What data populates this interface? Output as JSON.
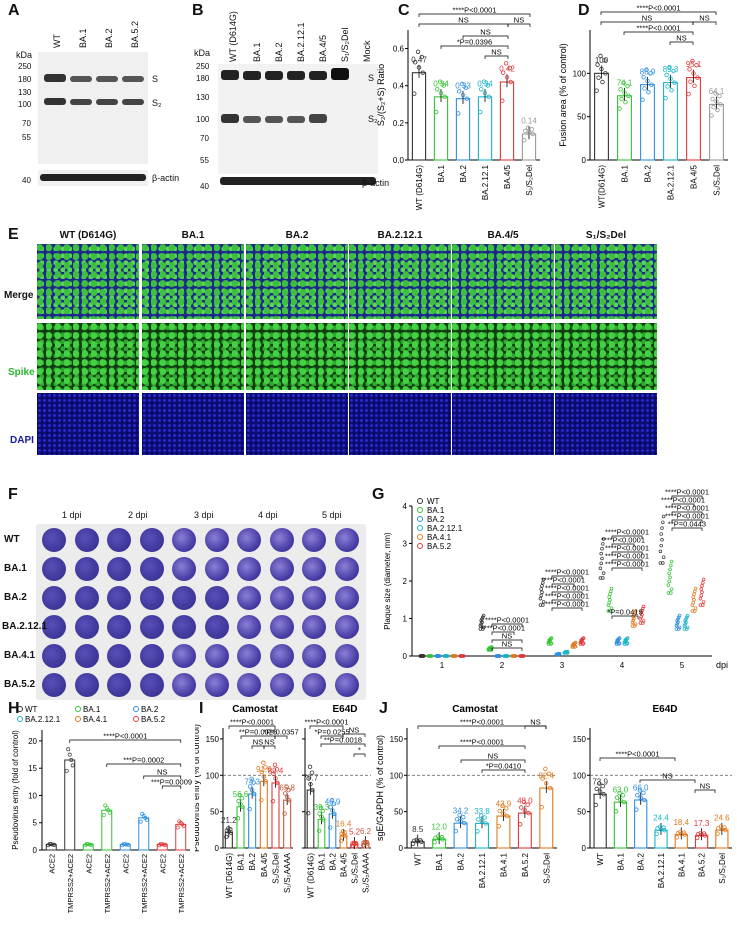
{
  "panelLabels": [
    "A",
    "B",
    "C",
    "D",
    "E",
    "F",
    "G",
    "H",
    "I",
    "J"
  ],
  "A": {
    "lanes": [
      "WT",
      "BA.1",
      "BA.2",
      "BA.5.2"
    ],
    "kda": "kDa",
    "markers": [
      "250",
      "180",
      "130",
      "100",
      "70",
      "55",
      "40"
    ],
    "bands": [
      "S",
      "S₂",
      "β-actin"
    ]
  },
  "B": {
    "lanes": [
      "WT (D614G)",
      "BA.1",
      "BA.2",
      "BA.2.12.1",
      "BA.4/5",
      "S₁/S₂Del",
      "Mock"
    ],
    "kda": "kDa",
    "markers": [
      "250",
      "180",
      "130",
      "100",
      "70",
      "55",
      "40"
    ],
    "bands": [
      "S",
      "S₂",
      "β-actin"
    ]
  },
  "C": {
    "ylabel": "S₂/(S₂+S) Ratio",
    "categories": [
      "WT (D614G)",
      "BA.1",
      "BA.2",
      "BA.2.12.1",
      "BA.4/5",
      "S₁/S₂Del"
    ],
    "valueLabels": [
      "0.47",
      "0.34",
      "0.33",
      "0.34",
      "0.42",
      "0.14"
    ],
    "ticks": [
      "0.0",
      "0.2",
      "0.4",
      "0.6"
    ],
    "stats": [
      "****P<0.0001",
      "NS",
      "NS",
      "*P=0.0396",
      "NS",
      "NS"
    ]
  },
  "D": {
    "ylabel": "Fusion area (% of control)",
    "categories": [
      "WT(D614G)",
      "BA.1",
      "BA.2",
      "BA.2.12.1",
      "BA.4/5",
      "S₁/S₂Del"
    ],
    "valueLabels": [
      "100",
      "74.1",
      "86.9",
      "89.3",
      "95.1",
      "64.1"
    ],
    "ticks": [
      "0",
      "50",
      "100"
    ],
    "stats": [
      "****P<0.0001",
      "NS",
      "****P<0.0001",
      "NS",
      "NS"
    ]
  },
  "E": {
    "columns": [
      "WT (D614G)",
      "BA.1",
      "BA.2",
      "BA.2.12.1",
      "BA.4/5",
      "S₁/S₂Del"
    ],
    "rows": [
      "Merge",
      "Spike",
      "DAPI"
    ]
  },
  "F": {
    "days": [
      "1 dpi",
      "2 dpi",
      "3 dpi",
      "4 dpi",
      "5 dpi"
    ],
    "rows": [
      "WT",
      "BA.1",
      "BA.2",
      "BA.2.12.1",
      "BA.4.1",
      "BA.5.2"
    ]
  },
  "G": {
    "legend": [
      "WT",
      "BA.1",
      "BA.2",
      "BA.2.12.1",
      "BA.4.1",
      "BA.5.2"
    ],
    "ylabel": "Plaque size (diameter, mm)",
    "xlabel": "dpi",
    "xticks": [
      "1",
      "2",
      "3",
      "4",
      "5"
    ],
    "yticks": [
      "0",
      "1",
      "2",
      "3",
      "4"
    ],
    "stats": [
      "****P<0.0001",
      "****P<0.0001",
      "****P<0.0001",
      "****P<0.0001",
      "**P=0.0443",
      "****P<0.0001",
      "****P<0.0001",
      "****P<0.0001",
      "****P<0.0001",
      "****P<0.0001",
      "****P<0.0001",
      "****P<0.0001",
      "****P<0.0001",
      "****P<0.0001",
      "****P<0.0001",
      "*P=0.0419",
      "****P<0.0001",
      "****P<0.0001",
      "NS",
      "NS",
      "***P=0.0009",
      "****P<0.0001",
      "NS",
      "NS",
      "NS"
    ]
  },
  "H": {
    "legend": [
      "WT",
      "BA.1",
      "BA.2",
      "BA.2.12.1",
      "BA.4.1",
      "BA.5.2"
    ],
    "ylabel": "Pseudovirus entry (fold of control)",
    "xticks": [
      "ACE2",
      "TMPRSS2+ACE2",
      "ACE2",
      "TMPRSS2+ACE2",
      "ACE2",
      "TMPRSS2+ACE2",
      "ACE2",
      "TMPRSS2+ACE2"
    ],
    "yticks": [
      "0",
      "5",
      "10",
      "15",
      "20"
    ],
    "stats": [
      "****P<0.0001",
      "***P=0.0002",
      "NS",
      "***P=0.0009"
    ]
  },
  "I": {
    "titles": [
      "Camostat",
      "E64D"
    ],
    "ylabel": "Pseudovirus entry (% of control)",
    "categories": [
      "WT (D614G)",
      "BA.1",
      "BA.2",
      "BA.4/5",
      "S₁/S₂Del",
      "S₁/S₂AAAA"
    ],
    "camostatLabels": [
      "21.2",
      "56.6",
      "74.3",
      "91.6",
      "89.4",
      "65.8"
    ],
    "e64dLabels": [
      "79.7",
      "39.3",
      "46.9",
      "16.4",
      "5.2",
      "6.2"
    ],
    "yticks": [
      "0",
      "50",
      "100",
      "150"
    ],
    "camostatStats": [
      "****P<0.0001",
      "**P=0.0025",
      "*P=0.0357",
      "NS",
      "NS"
    ],
    "e64dStats": [
      "****P<0.0001",
      "*P=0.0255",
      "**P=0.0018",
      "NS",
      "*"
    ]
  },
  "J": {
    "titles": [
      "Camostat",
      "E64D"
    ],
    "ylabel": "sgE/GAPDH (% of control)",
    "categories": [
      "WT",
      "BA.1",
      "BA.2",
      "BA.2.12.1",
      "BA.4.1",
      "BA.5.2",
      "S₁/S₂Del"
    ],
    "camostatLabels": [
      "8.5",
      "12.0",
      "34.2",
      "33.8",
      "43.9",
      "48.0",
      "82.4"
    ],
    "e64dCategories": [
      "WT",
      "BA.1",
      "BA.2",
      "BA.2.12.1",
      "BA.4.1",
      "BA.5.2",
      "S₁/S₂Del"
    ],
    "e64dLabels": [
      "73.9",
      "63.0",
      "66.0",
      "24.4",
      "18.4",
      "17.3",
      "24.6"
    ],
    "yticks": [
      "0",
      "50",
      "100",
      "150"
    ],
    "camostatStats": [
      "****P<0.0001",
      "****P<0.0001",
      "NS",
      "*P=0.0410",
      "NS"
    ],
    "e64dStats": [
      "****P<0.0001",
      "NS",
      "NS"
    ]
  },
  "chart_data": [
    {
      "type": "bar",
      "panel": "C",
      "categories": [
        "WT (D614G)",
        "BA.1",
        "BA.2",
        "BA.2.12.1",
        "BA.4/5",
        "S1/S2Del"
      ],
      "values": [
        0.47,
        0.34,
        0.33,
        0.34,
        0.42,
        0.14
      ],
      "ylim": [
        0,
        0.7
      ],
      "ylabel": "S2/(S2+S) Ratio"
    },
    {
      "type": "bar",
      "panel": "D",
      "categories": [
        "WT(D614G)",
        "BA.1",
        "BA.2",
        "BA.2.12.1",
        "BA.4/5",
        "S1/S2Del"
      ],
      "values": [
        100,
        74.1,
        86.9,
        89.3,
        95.1,
        64.1
      ],
      "ylim": [
        0,
        150
      ],
      "ylabel": "Fusion area (% of control)"
    },
    {
      "type": "scatter",
      "panel": "G",
      "x": [
        1,
        2,
        3,
        4,
        5
      ],
      "series": [
        {
          "name": "WT",
          "values": [
            0,
            0.9,
            1.7,
            2.6,
            3.1
          ]
        },
        {
          "name": "BA.1",
          "values": [
            0,
            0.2,
            0.4,
            1.5,
            2.1
          ]
        },
        {
          "name": "BA.2",
          "values": [
            0,
            0,
            0.05,
            0.4,
            0.9
          ]
        },
        {
          "name": "BA.2.12.1",
          "values": [
            0,
            0,
            0.1,
            0.4,
            0.9
          ]
        },
        {
          "name": "BA.4.1",
          "values": [
            0,
            0,
            0.3,
            1.0,
            1.5
          ]
        },
        {
          "name": "BA.5.2",
          "values": [
            0,
            0,
            0.4,
            1.1,
            1.7
          ]
        }
      ],
      "ylim": [
        0,
        4
      ],
      "xlabel": "dpi",
      "ylabel": "Plaque size (diameter, mm)"
    },
    {
      "type": "bar",
      "panel": "H",
      "categories": [
        "ACE2",
        "TMPRSS2+ACE2",
        "ACE2",
        "TMPRSS2+ACE2",
        "ACE2",
        "TMPRSS2+ACE2",
        "ACE2",
        "TMPRSS2+ACE2"
      ],
      "values": [
        1,
        16.5,
        1,
        7.3,
        1,
        5.9,
        1,
        4.7
      ],
      "ylim": [
        0,
        22
      ],
      "ylabel": "Pseudovirus entry (fold of control)"
    },
    {
      "type": "bar",
      "panel": "I-Camostat",
      "categories": [
        "WT (D614G)",
        "BA.1",
        "BA.2",
        "BA.4/5",
        "S1/S2Del",
        "S1/S2AAAA"
      ],
      "values": [
        21.2,
        56.6,
        74.3,
        91.6,
        89.4,
        65.8
      ],
      "ylim": [
        0,
        165
      ]
    },
    {
      "type": "bar",
      "panel": "I-E64D",
      "categories": [
        "WT (D614G)",
        "BA.1",
        "BA.2",
        "BA.4/5",
        "S1/S2Del",
        "S1/S2AAAA"
      ],
      "values": [
        79.7,
        39.3,
        46.9,
        16.4,
        5.2,
        6.2
      ],
      "ylim": [
        0,
        165
      ]
    },
    {
      "type": "bar",
      "panel": "J-Camostat",
      "categories": [
        "WT",
        "BA.1",
        "BA.2",
        "BA.2.12.1",
        "BA.4.1",
        "BA.5.2",
        "S1/S2Del"
      ],
      "values": [
        8.5,
        12.0,
        34.2,
        33.8,
        43.9,
        48.0,
        82.4
      ],
      "ylim": [
        0,
        165
      ]
    },
    {
      "type": "bar",
      "panel": "J-E64D",
      "categories": [
        "WT",
        "BA.1",
        "BA.2",
        "BA.2.12.1",
        "BA.4.1",
        "BA.5.2",
        "S1/S2Del"
      ],
      "values": [
        73.9,
        63.0,
        66.0,
        24.4,
        18.4,
        17.3,
        24.6
      ],
      "ylim": [
        0,
        165
      ]
    }
  ],
  "colors": {
    "WT": "#333333",
    "BA1": "#35c435",
    "BA2": "#2f8fe0",
    "BA2121": "#19b5c8",
    "BA41": "#e07a1e",
    "BA52": "#e03a3a",
    "BA45": "#e03a3a",
    "Del": "#9a9a9a",
    "AAAA": "#c05a3a",
    "blue": "#1a1aa0",
    "green": "#37c837"
  }
}
